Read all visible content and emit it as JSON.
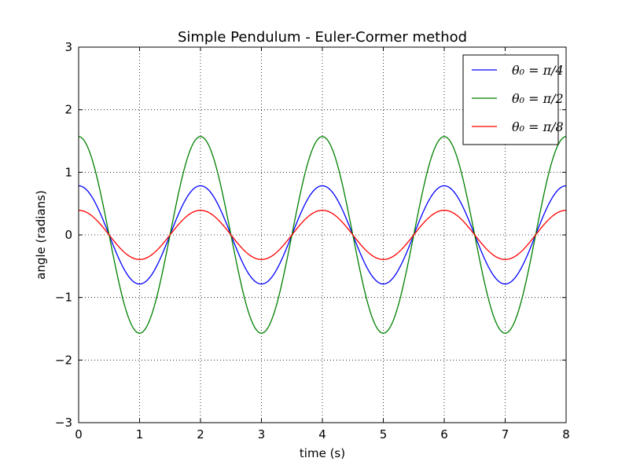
{
  "chart_data": {
    "type": "line",
    "title": "Simple Pendulum - Euler-Cormer method",
    "xlabel": "time (s)",
    "ylabel": "angle (radians)",
    "xlim": [
      0,
      8
    ],
    "ylim": [
      -3,
      3
    ],
    "xticks": [
      0,
      1,
      2,
      3,
      4,
      5,
      6,
      7,
      8
    ],
    "yticks": [
      -3,
      -2,
      -1,
      0,
      1,
      2,
      3
    ],
    "xtick_labels": [
      "0",
      "1",
      "2",
      "3",
      "4",
      "5",
      "6",
      "7",
      "8"
    ],
    "ytick_labels": [
      "−3",
      "−2",
      "−1",
      "0",
      "1",
      "2",
      "3"
    ],
    "grid": true,
    "legend_position": "top-right",
    "period_s": 2.0,
    "series": [
      {
        "name": "θ0=π/4",
        "legend_label": "θ₀ = π/4",
        "color": "#0000ff",
        "amplitude": 0.785
      },
      {
        "name": "θ0=π/2",
        "legend_label": "θ₀ = π/2",
        "color": "#008000",
        "amplitude": 1.571
      },
      {
        "name": "θ0=π/8",
        "legend_label": "θ₀ = π/8",
        "color": "#ff0000",
        "amplitude": 0.393
      }
    ]
  }
}
